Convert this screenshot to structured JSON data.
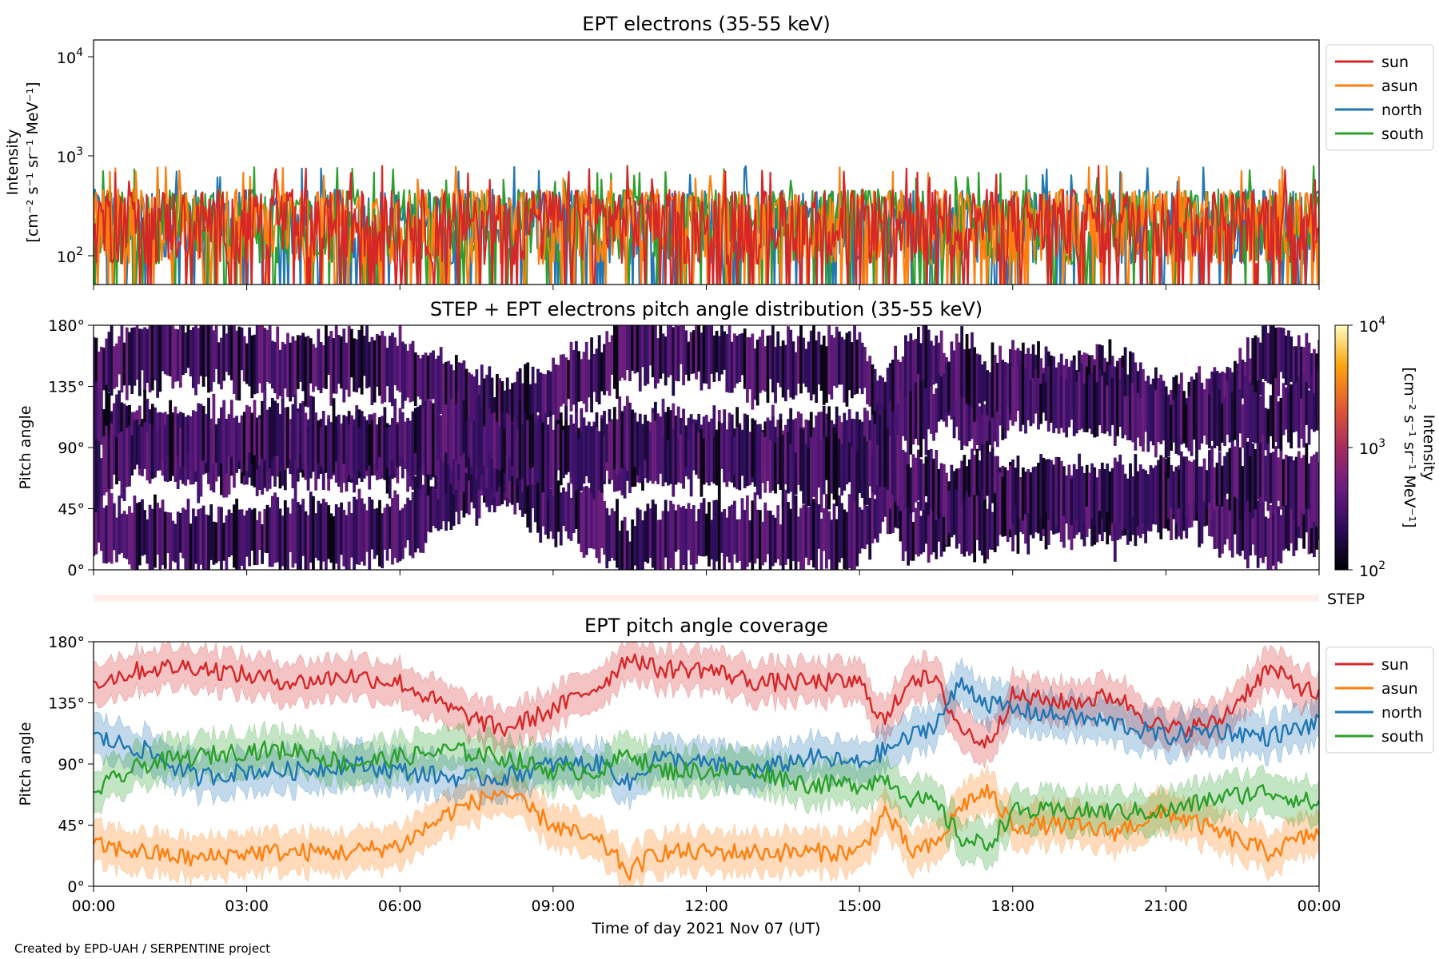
{
  "credit": "Created by EPD-UAH / SERPENTINE project",
  "xaxis": {
    "label": "Time of day 2021 Nov 07 (UT)",
    "tick_labels": [
      "00:00",
      "03:00",
      "06:00",
      "09:00",
      "12:00",
      "15:00",
      "18:00",
      "21:00",
      "00:00"
    ],
    "tick_hours": [
      0,
      3,
      6,
      9,
      12,
      15,
      18,
      21,
      24
    ],
    "range_hours": [
      0,
      24
    ]
  },
  "panels": {
    "intensity": {
      "title": "EPT electrons (35-55 keV)",
      "ylabel_line1": "Intensity",
      "ylabel_line2": "[cm⁻² s⁻¹ sr⁻¹ MeV⁻¹]",
      "yscale": "log",
      "ylim": [
        50,
        15000
      ],
      "ytick_base": "10",
      "ytick_exps": [
        "2",
        "3",
        "4"
      ],
      "ytick_values": [
        100,
        1000,
        10000
      ]
    },
    "pad": {
      "title": "STEP + EPT electrons pitch angle distribution (35-55 keV)",
      "ylabel": "Pitch angle",
      "ytick_labels": [
        "0°",
        "45°",
        "90°",
        "135°",
        "180°"
      ],
      "ytick_values": [
        0,
        45,
        90,
        135,
        180
      ],
      "ylim": [
        0,
        180
      ],
      "colorbar": {
        "scale": "log",
        "range": [
          100,
          10000
        ],
        "tick_base": "10",
        "tick_exps": [
          "2",
          "3",
          "4"
        ],
        "label_line1": "Intensity",
        "label_line2": "[cm⁻² s⁻¹ sr⁻¹ MeV⁻¹]",
        "colormap": "inferno-like",
        "stops": [
          "#000004",
          "#2c0b5a",
          "#6a1c81",
          "#a52c60",
          "#e35933",
          "#f9a40d",
          "#fcfdbf"
        ]
      },
      "step_strip_label": "STEP",
      "step_strip_color": "#fdf0ec"
    },
    "coverage": {
      "title": "EPT pitch angle coverage",
      "ylabel": "Pitch angle",
      "ytick_labels": [
        "0°",
        "45°",
        "90°",
        "135°",
        "180°"
      ],
      "ytick_values": [
        0,
        45,
        90,
        135,
        180
      ],
      "ylim": [
        0,
        180
      ]
    }
  },
  "legend": [
    {
      "name": "sun",
      "color": "#d62728"
    },
    {
      "name": "asun",
      "color": "#ff7f0e"
    },
    {
      "name": "north",
      "color": "#1f77b4"
    },
    {
      "name": "south",
      "color": "#2ca02c"
    }
  ],
  "chart_data": [
    {
      "type": "line",
      "title": "EPT electrons (35-55 keV)",
      "xlabel": "",
      "ylabel": "Intensity [cm⁻² s⁻¹ sr⁻¹ MeV⁻¹]",
      "yscale": "log",
      "xlim_hours": [
        0,
        24
      ],
      "ylim": [
        50,
        15000
      ],
      "legend_position": "outside right",
      "series": [
        {
          "name": "sun",
          "color": "#d62728",
          "typical_range": [
            50,
            700
          ],
          "noisy": true
        },
        {
          "name": "asun",
          "color": "#ff7f0e",
          "typical_range": [
            50,
            750
          ],
          "noisy": true
        },
        {
          "name": "north",
          "color": "#1f77b4",
          "typical_range": [
            50,
            800
          ],
          "noisy": true
        },
        {
          "name": "south",
          "color": "#2ca02c",
          "typical_range": [
            50,
            780
          ],
          "noisy": true
        }
      ]
    },
    {
      "type": "heatmap",
      "title": "STEP + EPT electrons pitch angle distribution (35-55 keV)",
      "xlabel": "",
      "ylabel": "Pitch angle",
      "xlim_hours": [
        0,
        24
      ],
      "ylim": [
        0,
        180
      ],
      "colorbar_range": [
        100,
        10000
      ],
      "colorbar_scale": "log",
      "dominant_intensity": [
        100,
        400
      ],
      "note_gaps": "white regions where no coverage"
    },
    {
      "type": "line",
      "title": "EPT pitch angle coverage",
      "xlabel": "Time of day 2021 Nov 07 (UT)",
      "ylabel": "Pitch angle",
      "xlim_hours": [
        0,
        24
      ],
      "ylim": [
        0,
        180
      ],
      "legend_position": "outside right",
      "x_hours": [
        0,
        1,
        2,
        3,
        4,
        5,
        6,
        7,
        8,
        9,
        10,
        10.5,
        11,
        12,
        13,
        14,
        15,
        15.5,
        16,
        16.5,
        17,
        17.5,
        18,
        19,
        20,
        21,
        22,
        23,
        24
      ],
      "series": [
        {
          "name": "sun",
          "color": "#d62728",
          "band_halfwidth": 15,
          "values": [
            150,
            160,
            162,
            155,
            150,
            155,
            150,
            130,
            115,
            130,
            150,
            170,
            160,
            160,
            150,
            150,
            150,
            120,
            155,
            150,
            115,
            105,
            140,
            135,
            140,
            115,
            120,
            160,
            140
          ]
        },
        {
          "name": "asun",
          "color": "#ff7f0e",
          "band_halfwidth": 15,
          "values": [
            30,
            25,
            20,
            25,
            25,
            25,
            30,
            55,
            70,
            45,
            30,
            10,
            25,
            25,
            25,
            25,
            25,
            55,
            25,
            30,
            60,
            70,
            45,
            45,
            40,
            55,
            40,
            25,
            40
          ]
        },
        {
          "name": "north",
          "color": "#1f77b4",
          "band_halfwidth": 15,
          "values": [
            110,
            100,
            80,
            85,
            85,
            90,
            85,
            80,
            80,
            90,
            90,
            75,
            95,
            90,
            85,
            95,
            90,
            100,
            110,
            120,
            150,
            135,
            130,
            125,
            120,
            110,
            115,
            110,
            120
          ]
        },
        {
          "name": "south",
          "color": "#2ca02c",
          "band_halfwidth": 15,
          "values": [
            70,
            90,
            95,
            100,
            100,
            90,
            95,
            100,
            95,
            85,
            85,
            100,
            85,
            85,
            85,
            75,
            75,
            80,
            65,
            60,
            35,
            30,
            55,
            55,
            55,
            55,
            65,
            70,
            60
          ]
        }
      ]
    }
  ]
}
